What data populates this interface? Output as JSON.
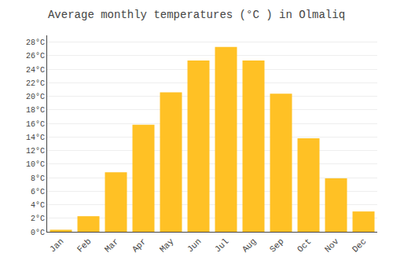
{
  "chart_data": {
    "type": "bar",
    "title": "Average monthly temperatures (°C ) in Olmaliq",
    "categories": [
      "Jan",
      "Feb",
      "Mar",
      "Apr",
      "May",
      "Jun",
      "Jul",
      "Aug",
      "Sep",
      "Oct",
      "Nov",
      "Dec"
    ],
    "values": [
      0.3,
      2.3,
      8.8,
      15.8,
      20.6,
      25.3,
      27.3,
      25.3,
      20.4,
      13.8,
      7.9,
      3.0
    ],
    "color": "#FFC125",
    "ylim": [
      0,
      29
    ],
    "yticks": [
      {
        "value": 0,
        "label": "0°C"
      },
      {
        "value": 2,
        "label": "2°C"
      },
      {
        "value": 4,
        "label": "4°C"
      },
      {
        "value": 6,
        "label": "6°C"
      },
      {
        "value": 8,
        "label": "8°C"
      },
      {
        "value": 10,
        "label": "10°C"
      },
      {
        "value": 12,
        "label": "12°C"
      },
      {
        "value": 14,
        "label": "14°C"
      },
      {
        "value": 16,
        "label": "16°C"
      },
      {
        "value": 18,
        "label": "18°C"
      },
      {
        "value": 20,
        "label": "20°C"
      },
      {
        "value": 22,
        "label": "22°C"
      },
      {
        "value": 24,
        "label": "24°C"
      },
      {
        "value": 26,
        "label": "26°C"
      },
      {
        "value": 28,
        "label": "28°C"
      }
    ],
    "grid": true
  }
}
